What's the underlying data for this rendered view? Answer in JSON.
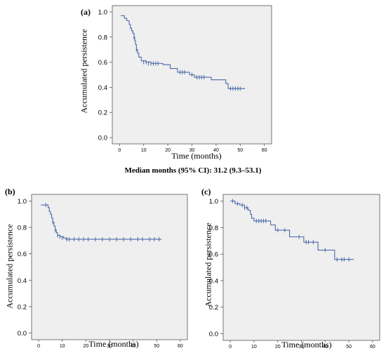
{
  "caption": "Median months (95% CI): 31.2 (9.3–53.1)",
  "colors": {
    "line": "#4a6aa8",
    "plot_bg": "#efefef",
    "frame": "#555555",
    "text": "#000000"
  },
  "chart_data": [
    {
      "panel_label": "(a)",
      "type": "line",
      "step": true,
      "xlabel": "Time (months)",
      "ylabel": "Accumulated persistence",
      "xlim": [
        -3,
        63
      ],
      "ylim": [
        -0.05,
        1.05
      ],
      "xticks": [
        0,
        10,
        20,
        30,
        40,
        50,
        60
      ],
      "yticks": [
        0.0,
        0.2,
        0.4,
        0.6,
        0.8,
        1.0
      ],
      "xtick_labels": [
        "0",
        "10",
        "20",
        "30",
        "40",
        "50",
        "60"
      ],
      "ytick_labels": [
        "0.0",
        "0.2",
        "0.4",
        "0.6",
        "0.8",
        "1.0"
      ],
      "grid": false,
      "steps": [
        [
          0.5,
          0.97
        ],
        [
          2.0,
          0.95
        ],
        [
          3.0,
          0.93
        ],
        [
          4.0,
          0.9
        ],
        [
          4.5,
          0.87
        ],
        [
          5.0,
          0.85
        ],
        [
          5.5,
          0.83
        ],
        [
          6.0,
          0.8
        ],
        [
          6.3,
          0.77
        ],
        [
          6.6,
          0.74
        ],
        [
          7.0,
          0.7
        ],
        [
          7.5,
          0.67
        ],
        [
          8.0,
          0.64
        ],
        [
          9.0,
          0.61
        ],
        [
          11.0,
          0.6
        ],
        [
          13.0,
          0.59
        ],
        [
          18.0,
          0.58
        ],
        [
          21.0,
          0.55
        ],
        [
          24.0,
          0.52
        ],
        [
          29.0,
          0.5
        ],
        [
          31.0,
          0.48
        ],
        [
          38.0,
          0.46
        ],
        [
          44.0,
          0.43
        ],
        [
          45.0,
          0.39
        ],
        [
          52.0,
          0.39
        ]
      ],
      "censored": [
        [
          6,
          0.8
        ],
        [
          7,
          0.7
        ],
        [
          10,
          0.6
        ],
        [
          11,
          0.6
        ],
        [
          12,
          0.59
        ],
        [
          13,
          0.59
        ],
        [
          14,
          0.59
        ],
        [
          15,
          0.59
        ],
        [
          16,
          0.59
        ],
        [
          25,
          0.52
        ],
        [
          26,
          0.52
        ],
        [
          27,
          0.52
        ],
        [
          30,
          0.5
        ],
        [
          32,
          0.48
        ],
        [
          33,
          0.48
        ],
        [
          34,
          0.48
        ],
        [
          35,
          0.48
        ],
        [
          46,
          0.39
        ],
        [
          47,
          0.39
        ],
        [
          48,
          0.39
        ],
        [
          49,
          0.39
        ],
        [
          50,
          0.39
        ]
      ]
    },
    {
      "panel_label": "(b)",
      "type": "line",
      "step": true,
      "xlabel": "Time (months)",
      "ylabel": "Accumulated persistence",
      "xlim": [
        -3,
        63
      ],
      "ylim": [
        -0.05,
        1.05
      ],
      "xticks": [
        0,
        10,
        20,
        30,
        40,
        50,
        60
      ],
      "yticks": [
        0.0,
        0.2,
        0.4,
        0.6,
        0.8,
        1.0
      ],
      "xtick_labels": [
        "0",
        "10",
        "20",
        "30",
        "40",
        "50",
        "60"
      ],
      "ytick_labels": [
        "0.0",
        "0.2",
        "0.4",
        "0.6",
        "0.8",
        "1.0"
      ],
      "grid": false,
      "steps": [
        [
          1.0,
          0.97
        ],
        [
          4.0,
          0.95
        ],
        [
          4.5,
          0.92
        ],
        [
          5.0,
          0.9
        ],
        [
          5.5,
          0.87
        ],
        [
          6.0,
          0.84
        ],
        [
          6.5,
          0.81
        ],
        [
          7.0,
          0.78
        ],
        [
          7.5,
          0.76
        ],
        [
          8.0,
          0.74
        ],
        [
          9.0,
          0.73
        ],
        [
          10.5,
          0.72
        ],
        [
          11.5,
          0.71
        ],
        [
          52.0,
          0.71
        ]
      ],
      "censored": [
        [
          3,
          0.97
        ],
        [
          6,
          0.84
        ],
        [
          7,
          0.78
        ],
        [
          8,
          0.74
        ],
        [
          9,
          0.73
        ],
        [
          10,
          0.72
        ],
        [
          12,
          0.71
        ],
        [
          13,
          0.71
        ],
        [
          15,
          0.71
        ],
        [
          17,
          0.71
        ],
        [
          19,
          0.71
        ],
        [
          21,
          0.71
        ],
        [
          24,
          0.71
        ],
        [
          27,
          0.71
        ],
        [
          30,
          0.71
        ],
        [
          33,
          0.71
        ],
        [
          36,
          0.71
        ],
        [
          39,
          0.71
        ],
        [
          42,
          0.71
        ],
        [
          44,
          0.71
        ],
        [
          47,
          0.71
        ],
        [
          49,
          0.71
        ],
        [
          51,
          0.71
        ]
      ]
    },
    {
      "panel_label": "(c)",
      "type": "line",
      "step": true,
      "xlabel": "Time (months)",
      "ylabel": "Accumulated persistence",
      "xlim": [
        -3,
        63
      ],
      "ylim": [
        -0.05,
        1.05
      ],
      "xticks": [
        0,
        10,
        20,
        30,
        40,
        50,
        60
      ],
      "yticks": [
        0.0,
        0.2,
        0.4,
        0.6,
        0.8,
        1.0
      ],
      "xtick_labels": [
        "0",
        "10",
        "20",
        "30",
        "40",
        "50",
        "60"
      ],
      "ytick_labels": [
        "0.0",
        "0.2",
        "0.4",
        "0.6",
        "0.8",
        "1.0"
      ],
      "grid": false,
      "steps": [
        [
          0.0,
          1.0
        ],
        [
          2.0,
          0.98
        ],
        [
          4.0,
          0.97
        ],
        [
          6.0,
          0.95
        ],
        [
          7.5,
          0.93
        ],
        [
          8.5,
          0.9
        ],
        [
          9.0,
          0.87
        ],
        [
          10.0,
          0.85
        ],
        [
          17.0,
          0.82
        ],
        [
          19.0,
          0.78
        ],
        [
          25.0,
          0.73
        ],
        [
          31.0,
          0.69
        ],
        [
          37.0,
          0.63
        ],
        [
          44.0,
          0.56
        ],
        [
          52.0,
          0.56
        ]
      ],
      "censored": [
        [
          1,
          1.0
        ],
        [
          3,
          0.98
        ],
        [
          5,
          0.97
        ],
        [
          6,
          0.95
        ],
        [
          7,
          0.95
        ],
        [
          11,
          0.85
        ],
        [
          12,
          0.85
        ],
        [
          13,
          0.85
        ],
        [
          14,
          0.85
        ],
        [
          15,
          0.85
        ],
        [
          20,
          0.78
        ],
        [
          23,
          0.78
        ],
        [
          29,
          0.73
        ],
        [
          32,
          0.69
        ],
        [
          33,
          0.69
        ],
        [
          35,
          0.69
        ],
        [
          40,
          0.63
        ],
        [
          45,
          0.56
        ],
        [
          47,
          0.56
        ],
        [
          48,
          0.56
        ],
        [
          50,
          0.56
        ]
      ]
    }
  ]
}
